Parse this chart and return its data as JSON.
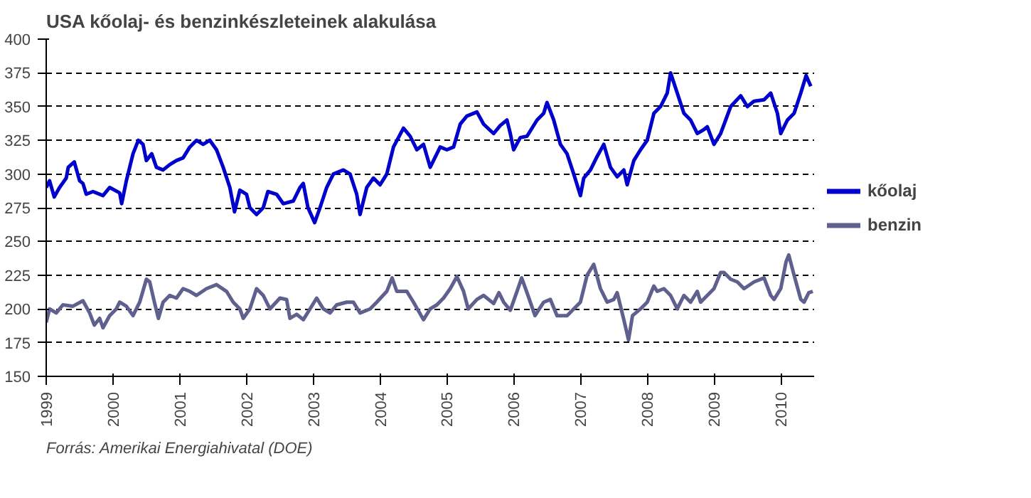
{
  "chart_data": {
    "type": "line",
    "title": "USA kőolaj- és benzinkészleteinek alakulása",
    "annotations": [
      "Forrás: Amerikai Energiahivatal (DOE)"
    ],
    "xlim": [
      1999,
      2010.5
    ],
    "xticks": [
      1999,
      2000,
      2001,
      2002,
      2003,
      2004,
      2005,
      2006,
      2007,
      2008,
      2009,
      2010
    ],
    "ylim": [
      150,
      400
    ],
    "yticks": [
      150,
      175,
      200,
      225,
      250,
      275,
      300,
      325,
      350,
      375,
      400
    ],
    "grid": "y",
    "legend": "right",
    "series": [
      {
        "name": "kőolaj",
        "color": "#0000cc",
        "x": [
          1999.0,
          1999.05,
          1999.12,
          1999.2,
          1999.3,
          1999.33,
          1999.42,
          1999.5,
          1999.55,
          1999.6,
          1999.7,
          1999.85,
          1999.95,
          2000.1,
          2000.13,
          2000.2,
          2000.3,
          2000.38,
          2000.45,
          2000.5,
          2000.58,
          2000.65,
          2000.75,
          2000.85,
          2000.95,
          2001.05,
          2001.15,
          2001.25,
          2001.35,
          2001.45,
          2001.55,
          2001.65,
          2001.75,
          2001.82,
          2001.9,
          2002.0,
          2002.05,
          2002.15,
          2002.25,
          2002.32,
          2002.45,
          2002.55,
          2002.7,
          2002.8,
          2002.85,
          2002.92,
          2003.02,
          2003.1,
          2003.2,
          2003.3,
          2003.45,
          2003.55,
          2003.65,
          2003.7,
          2003.8,
          2003.9,
          2004.0,
          2004.1,
          2004.2,
          2004.35,
          2004.45,
          2004.55,
          2004.65,
          2004.75,
          2004.85,
          2004.9,
          2005.0,
          2005.1,
          2005.2,
          2005.3,
          2005.45,
          2005.55,
          2005.7,
          2005.8,
          2005.9,
          2005.95,
          2006.0,
          2006.1,
          2006.2,
          2006.35,
          2006.45,
          2006.5,
          2006.6,
          2006.7,
          2006.8,
          2006.9,
          2007.0,
          2007.05,
          2007.15,
          2007.25,
          2007.35,
          2007.45,
          2007.55,
          2007.65,
          2007.7,
          2007.8,
          2007.9,
          2008.0,
          2008.1,
          2008.2,
          2008.3,
          2008.35,
          2008.45,
          2008.55,
          2008.65,
          2008.75,
          2008.85,
          2008.9,
          2009.0,
          2009.1,
          2009.25,
          2009.4,
          2009.5,
          2009.6,
          2009.75,
          2009.85,
          2009.95,
          2010.0,
          2010.1,
          2010.2,
          2010.3,
          2010.38,
          2010.45
        ],
        "values": [
          290,
          295,
          283,
          290,
          297,
          305,
          309,
          295,
          293,
          285,
          287,
          284,
          290,
          286,
          278,
          295,
          315,
          325,
          322,
          310,
          315,
          305,
          303,
          307,
          310,
          312,
          320,
          325,
          322,
          325,
          318,
          305,
          290,
          272,
          288,
          285,
          275,
          270,
          275,
          287,
          285,
          278,
          280,
          290,
          293,
          275,
          264,
          275,
          290,
          300,
          303,
          300,
          285,
          270,
          290,
          297,
          292,
          300,
          320,
          334,
          328,
          318,
          322,
          305,
          315,
          320,
          318,
          320,
          337,
          343,
          346,
          337,
          330,
          336,
          340,
          330,
          318,
          327,
          328,
          340,
          345,
          353,
          340,
          322,
          315,
          300,
          284,
          297,
          303,
          313,
          322,
          305,
          298,
          303,
          292,
          310,
          318,
          325,
          345,
          350,
          360,
          375,
          360,
          345,
          340,
          330,
          333,
          335,
          322,
          330,
          350,
          358,
          350,
          354,
          355,
          360,
          345,
          330,
          340,
          345,
          360,
          373,
          365
        ]
      },
      {
        "name": "benzin",
        "color": "#60608f",
        "x": [
          1999.0,
          1999.05,
          1999.15,
          1999.25,
          1999.4,
          1999.55,
          1999.65,
          1999.72,
          1999.8,
          1999.85,
          1999.95,
          2000.05,
          2000.1,
          2000.2,
          2000.3,
          2000.4,
          2000.5,
          2000.55,
          2000.62,
          2000.68,
          2000.75,
          2000.85,
          2000.95,
          2001.05,
          2001.15,
          2001.25,
          2001.4,
          2001.55,
          2001.7,
          2001.8,
          2001.9,
          2001.95,
          2002.05,
          2002.15,
          2002.25,
          2002.35,
          2002.5,
          2002.6,
          2002.65,
          2002.75,
          2002.85,
          2002.95,
          2003.05,
          2003.15,
          2003.25,
          2003.35,
          2003.5,
          2003.6,
          2003.7,
          2003.85,
          2003.95,
          2004.1,
          2004.18,
          2004.25,
          2004.4,
          2004.5,
          2004.65,
          2004.75,
          2004.85,
          2004.95,
          2005.05,
          2005.15,
          2005.25,
          2005.32,
          2005.45,
          2005.55,
          2005.7,
          2005.78,
          2005.85,
          2005.95,
          2006.05,
          2006.12,
          2006.2,
          2006.32,
          2006.45,
          2006.55,
          2006.65,
          2006.8,
          2006.9,
          2007.0,
          2007.1,
          2007.2,
          2007.3,
          2007.4,
          2007.5,
          2007.55,
          2007.65,
          2007.72,
          2007.78,
          2007.9,
          2008.0,
          2008.1,
          2008.15,
          2008.25,
          2008.35,
          2008.45,
          2008.55,
          2008.65,
          2008.75,
          2008.8,
          2008.9,
          2009.0,
          2009.1,
          2009.15,
          2009.25,
          2009.35,
          2009.45,
          2009.6,
          2009.75,
          2009.85,
          2009.9,
          2010.0,
          2010.08,
          2010.12,
          2010.2,
          2010.3,
          2010.35,
          2010.42,
          2010.48
        ],
        "values": [
          190,
          200,
          197,
          203,
          202,
          206,
          197,
          188,
          193,
          186,
          195,
          200,
          205,
          202,
          195,
          205,
          222,
          220,
          205,
          193,
          205,
          210,
          208,
          215,
          213,
          210,
          215,
          218,
          213,
          205,
          200,
          193,
          200,
          215,
          210,
          200,
          208,
          207,
          193,
          196,
          192,
          200,
          208,
          200,
          197,
          203,
          205,
          205,
          197,
          200,
          205,
          213,
          223,
          213,
          213,
          205,
          192,
          200,
          203,
          208,
          215,
          224,
          213,
          200,
          207,
          210,
          204,
          212,
          205,
          199,
          213,
          223,
          212,
          195,
          205,
          207,
          195,
          195,
          200,
          205,
          225,
          233,
          215,
          205,
          207,
          212,
          192,
          177,
          195,
          200,
          205,
          217,
          213,
          215,
          210,
          200,
          210,
          205,
          213,
          205,
          210,
          215,
          227,
          227,
          222,
          220,
          215,
          220,
          223,
          210,
          207,
          215,
          235,
          240,
          225,
          207,
          205,
          212,
          213
        ]
      }
    ]
  }
}
